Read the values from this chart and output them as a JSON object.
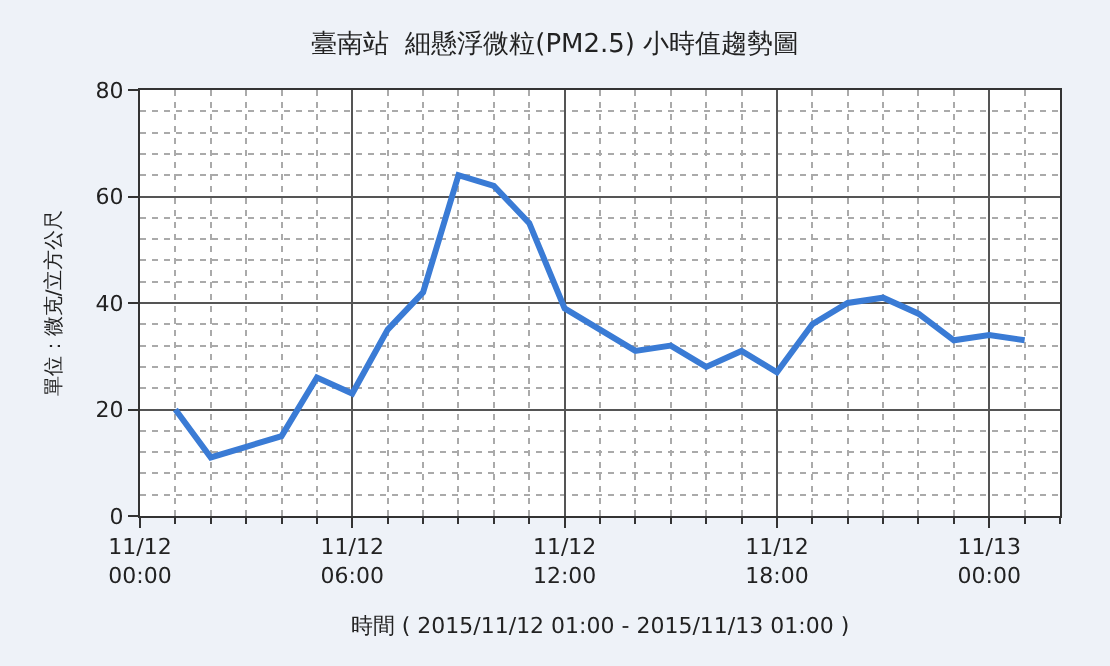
{
  "chart_data": {
    "type": "line",
    "title": "臺南站  細懸浮微粒(PM2.5) 小時值趨勢圖",
    "xlabel": "時間 ( 2015/11/12 01:00 - 2015/11/13 01:00 )",
    "ylabel": "單位：微克/立方公尺",
    "x": [
      "2015-11-12T01:00",
      "2015-11-12T02:00",
      "2015-11-12T03:00",
      "2015-11-12T04:00",
      "2015-11-12T05:00",
      "2015-11-12T06:00",
      "2015-11-12T07:00",
      "2015-11-12T08:00",
      "2015-11-12T09:00",
      "2015-11-12T10:00",
      "2015-11-12T11:00",
      "2015-11-12T12:00",
      "2015-11-12T13:00",
      "2015-11-12T14:00",
      "2015-11-12T15:00",
      "2015-11-12T16:00",
      "2015-11-12T17:00",
      "2015-11-12T18:00",
      "2015-11-12T19:00",
      "2015-11-12T20:00",
      "2015-11-12T21:00",
      "2015-11-12T22:00",
      "2015-11-12T23:00",
      "2015-11-13T00:00",
      "2015-11-13T01:00"
    ],
    "series": [
      {
        "color": "#3a7bd5",
        "values": [
          20,
          11,
          13,
          15,
          26,
          23,
          35,
          42,
          64,
          62,
          55,
          39,
          35,
          31,
          32,
          28,
          31,
          27,
          36,
          40,
          41,
          38,
          33,
          34,
          33
        ]
      }
    ],
    "xlim": [
      "2015-11-12T00:00",
      "2015-11-13T02:00"
    ],
    "xticks": [
      {
        "value": "2015-11-12T00:00",
        "label": "11/12\n00:00"
      },
      {
        "value": "2015-11-12T06:00",
        "label": "11/12\n06:00"
      },
      {
        "value": "2015-11-12T12:00",
        "label": "11/12\n12:00"
      },
      {
        "value": "2015-11-12T18:00",
        "label": "11/12\n18:00"
      },
      {
        "value": "2015-11-13T00:00",
        "label": "11/13\n00:00"
      }
    ],
    "ylim": [
      0,
      80
    ],
    "yticks": [
      0,
      20,
      40,
      60,
      80
    ],
    "grid": true,
    "marker": "none",
    "line_style": "solid"
  }
}
